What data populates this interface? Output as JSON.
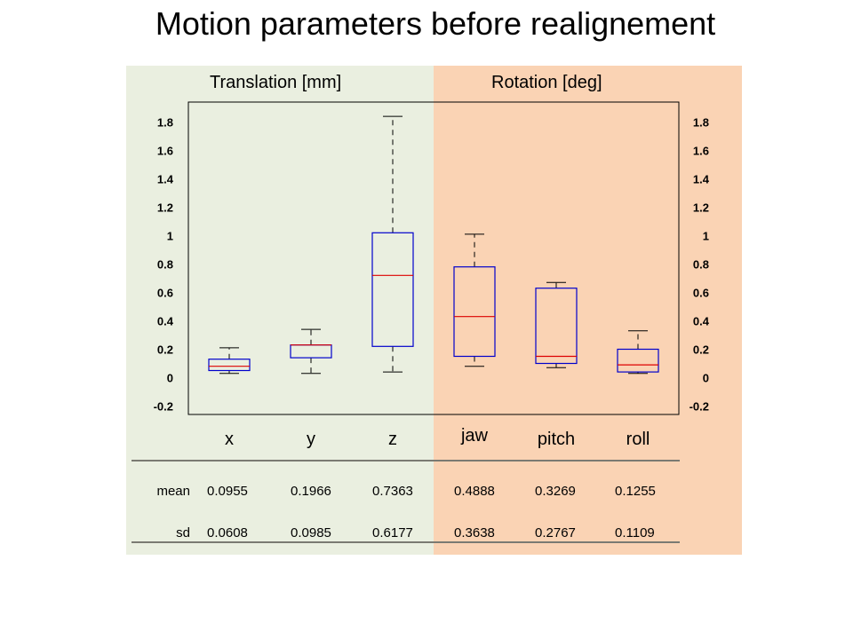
{
  "title": "Motion parameters before realignement",
  "colors": {
    "translation_panel": "#eaefe0",
    "rotation_panel": "#fad3b4",
    "box": "#0000cc",
    "median": "#dd0000",
    "frame": "#000000"
  },
  "chart_data": {
    "type": "box",
    "title": "Motion parameters before realignement",
    "group_labels": [
      "Translation [mm]",
      "Rotation [deg]"
    ],
    "categories": [
      "x",
      "y",
      "z",
      "jaw",
      "pitch",
      "roll"
    ],
    "ylim": [
      -0.25,
      1.95
    ],
    "yticks": [
      "1.8",
      "1.6",
      "1.4",
      "1.2",
      "1",
      "0.8",
      "0.6",
      "0.4",
      "0.2",
      "0",
      "-0.2"
    ],
    "yticks_values": [
      1.8,
      1.6,
      1.4,
      1.2,
      1.0,
      0.8,
      0.6,
      0.4,
      0.2,
      0.0,
      -0.2
    ],
    "grid": false,
    "boxes": [
      {
        "name": "x",
        "whisker_low": 0.03,
        "q1": 0.05,
        "median": 0.08,
        "q3": 0.13,
        "whisker_high": 0.21
      },
      {
        "name": "y",
        "whisker_low": 0.03,
        "q1": 0.14,
        "median": 0.23,
        "q3": 0.23,
        "whisker_high": 0.34
      },
      {
        "name": "z",
        "whisker_low": 0.04,
        "q1": 0.22,
        "median": 0.72,
        "q3": 1.02,
        "whisker_high": 1.84
      },
      {
        "name": "jaw",
        "whisker_low": 0.08,
        "q1": 0.15,
        "median": 0.43,
        "q3": 0.78,
        "whisker_high": 1.01
      },
      {
        "name": "pitch",
        "whisker_low": 0.07,
        "q1": 0.1,
        "median": 0.15,
        "q3": 0.63,
        "whisker_high": 0.67
      },
      {
        "name": "roll",
        "whisker_low": 0.03,
        "q1": 0.04,
        "median": 0.09,
        "q3": 0.2,
        "whisker_high": 0.33
      }
    ]
  },
  "stats": {
    "mean_label": "mean",
    "sd_label": "sd",
    "mean": [
      "0.0955",
      "0.1966",
      "0.7363",
      "0.4888",
      "0.3269",
      "0.1255"
    ],
    "sd": [
      "0.0608",
      "0.0985",
      "0.6177",
      "0.3638",
      "0.2767",
      "0.1109"
    ]
  }
}
